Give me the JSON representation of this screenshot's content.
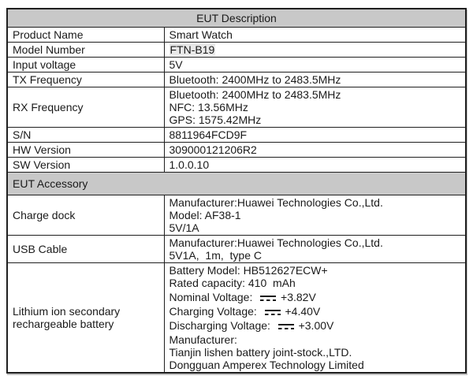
{
  "colors": {
    "page_bg": "#ffffff",
    "table_header_bg": "#c8c8c8",
    "section_header_bg": "#c8c8c8",
    "model_highlight_bg": "#e9e9e9",
    "border": "#1f1f1f",
    "text": "#1a1a1a"
  },
  "table": {
    "title": "EUT Description",
    "description_rows": [
      {
        "label": "Product Name",
        "values": [
          "Smart Watch"
        ]
      },
      {
        "label": "Model Number",
        "values": [
          "FTN-B19"
        ],
        "highlight": true
      },
      {
        "label": "Input voltage",
        "values": [
          "5V"
        ]
      },
      {
        "label": "TX Frequency",
        "values": [
          "Bluetooth: 2400MHz to 2483.5MHz"
        ]
      },
      {
        "label": "RX Frequency",
        "values": [
          "Bluetooth: 2400MHz to 2483.5MHz",
          "NFC: 13.56MHz",
          "GPS: 1575.42MHz"
        ]
      },
      {
        "label": "S/N",
        "values": [
          "8811964FCD9F"
        ]
      },
      {
        "label": "HW Version",
        "values": [
          "309000121206R2"
        ]
      },
      {
        "label": "SW Version",
        "values": [
          "1.0.0.10"
        ]
      }
    ],
    "accessory_title": "EUT Accessory",
    "accessory_rows": [
      {
        "label": "Charge dock",
        "values": [
          "Manufacturer:Huawei Technologies Co.,Ltd.",
          "Model: AF38-1",
          "5V/1A"
        ]
      },
      {
        "label": "USB Cable",
        "values": [
          "Manufacturer:Huawei Technologies Co.,Ltd.",
          "5V1A,  1m,  type C"
        ]
      },
      {
        "label": "Lithium ion secondary rechargeable battery",
        "values": [
          "Battery Model: HB512627ECW+",
          "Rated capacity: 410  mAh",
          {
            "pre": "Nominal Voltage:  ",
            "icon": "dc-voltage-symbol",
            "post": " +3.82V"
          },
          {
            "pre": "Charging Voltage:  ",
            "icon": "dc-voltage-symbol",
            "post": " +4.40V"
          },
          {
            "pre": "Discharging Voltage:  ",
            "icon": "dc-voltage-symbol",
            "post": " +3.00V"
          },
          "Manufacturer:",
          "Tianjin lishen battery joint-stock.,LTD.",
          "Dongguan Amperex Technology Limited"
        ]
      }
    ]
  }
}
